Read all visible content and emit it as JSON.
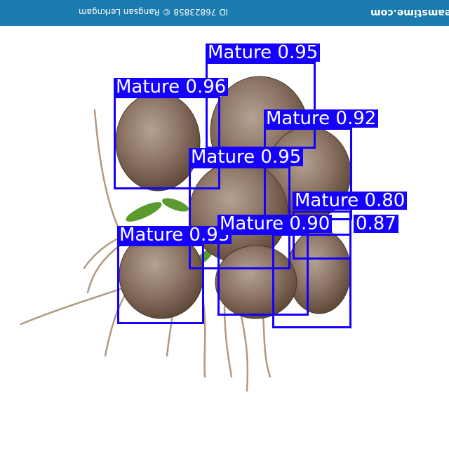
{
  "watermark": {
    "brand": "dreamstime.com",
    "credit": "ID 76823858 © Rangsan Lerkngam"
  },
  "colors": {
    "banner": "#1b7aae",
    "box": "#1500ff",
    "coconut_dark": "#5c4636",
    "coconut_mid": "#8a7262",
    "coconut_light": "#b4a293",
    "root": "#b09a82",
    "sprout": "#5a9a2e"
  },
  "detections": [
    {
      "label": "Mature",
      "score": "0.95"
    },
    {
      "label": "Mature",
      "score": "0.96"
    },
    {
      "label": "Mature",
      "score": "0.92"
    },
    {
      "label": "Mature",
      "score": "0.95"
    },
    {
      "label": "Mature",
      "score": "0.80"
    },
    {
      "label": "Mature",
      "score": "0.93"
    },
    {
      "label": "Mature",
      "score": "0.90"
    },
    {
      "label": "Mature",
      "score": "0.87"
    }
  ]
}
